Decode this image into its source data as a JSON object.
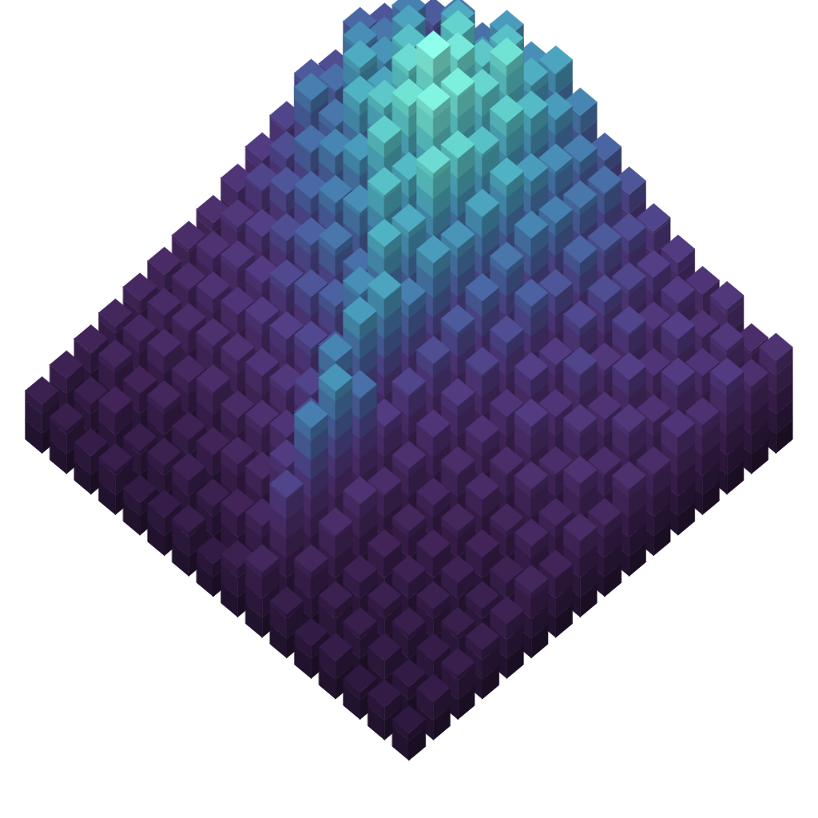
{
  "chart_data": {
    "type": "bar3d",
    "tick_labels": false,
    "values": [
      [
        45,
        52,
        60,
        58,
        70,
        66,
        72,
        64,
        55,
        50,
        44,
        40,
        36,
        38,
        30,
        34
      ],
      [
        50,
        62,
        55,
        74,
        68,
        80,
        75,
        70,
        62,
        58,
        48,
        42,
        40,
        35,
        38,
        32
      ],
      [
        56,
        60,
        72,
        70,
        85,
        82,
        90,
        78,
        66,
        60,
        52,
        45,
        38,
        42,
        36,
        40
      ],
      [
        48,
        66,
        68,
        80,
        78,
        92,
        86,
        84,
        70,
        62,
        55,
        48,
        44,
        36,
        40,
        33
      ],
      [
        52,
        58,
        74,
        72,
        88,
        100,
        94,
        80,
        76,
        64,
        50,
        46,
        38,
        42,
        34,
        36
      ],
      [
        44,
        62,
        60,
        76,
        82,
        90,
        96,
        86,
        72,
        60,
        54,
        40,
        44,
        35,
        38,
        30
      ],
      [
        40,
        48,
        58,
        64,
        70,
        84,
        78,
        88,
        68,
        56,
        48,
        42,
        36,
        38,
        30,
        32
      ],
      [
        36,
        44,
        50,
        56,
        62,
        66,
        80,
        74,
        70,
        52,
        44,
        36,
        40,
        30,
        34,
        26
      ],
      [
        32,
        38,
        42,
        48,
        54,
        60,
        58,
        76,
        62,
        48,
        40,
        34,
        30,
        32,
        26,
        28
      ],
      [
        30,
        34,
        38,
        40,
        46,
        50,
        54,
        66,
        72,
        44,
        36,
        30,
        28,
        24,
        26,
        22
      ],
      [
        28,
        30,
        34,
        36,
        40,
        42,
        46,
        50,
        70,
        40,
        32,
        26,
        24,
        22,
        20,
        24
      ],
      [
        26,
        28,
        30,
        32,
        34,
        36,
        38,
        44,
        64,
        58,
        30,
        24,
        22,
        20,
        18,
        20
      ],
      [
        24,
        26,
        28,
        26,
        30,
        28,
        32,
        36,
        48,
        68,
        34,
        22,
        20,
        18,
        16,
        18
      ],
      [
        22,
        24,
        22,
        24,
        20,
        22,
        26,
        28,
        40,
        62,
        30,
        20,
        18,
        16,
        14,
        16
      ],
      [
        20,
        18,
        22,
        16,
        18,
        20,
        18,
        22,
        26,
        44,
        24,
        18,
        16,
        14,
        12,
        14
      ],
      [
        18,
        16,
        14,
        16,
        12,
        14,
        16,
        12,
        18,
        24,
        16,
        12,
        14,
        10,
        12,
        10
      ]
    ]
  }
}
